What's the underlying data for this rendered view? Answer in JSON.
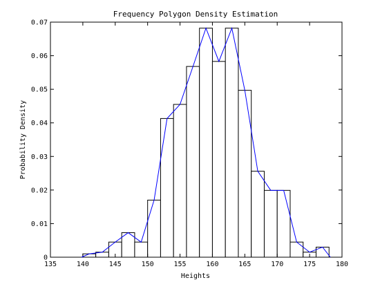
{
  "chart_data": {
    "type": "bar",
    "title": "Frequency Polygon Density Estimation",
    "xlabel": "Heights",
    "ylabel": "Probability Density",
    "xlim": [
      135,
      180
    ],
    "ylim": [
      0,
      0.07
    ],
    "xticks": [
      "135",
      "140",
      "145",
      "150",
      "155",
      "160",
      "165",
      "170",
      "175",
      "180"
    ],
    "yticks": [
      "0",
      "0.01",
      "0.02",
      "0.03",
      "0.04",
      "0.05",
      "0.06",
      "0.07"
    ],
    "grid": false,
    "legend": "none",
    "bar_color": "#ffffff",
    "bar_edge_color": "#000000",
    "line_color": "#0000ff",
    "bins": [
      {
        "x0": 140.0,
        "x1": 142.0,
        "value": 0.001
      },
      {
        "x0": 142.0,
        "x1": 144.0,
        "value": 0.0015
      },
      {
        "x0": 144.0,
        "x1": 146.0,
        "value": 0.0045
      },
      {
        "x0": 146.0,
        "x1": 148.0,
        "value": 0.0073
      },
      {
        "x0": 148.0,
        "x1": 150.0,
        "value": 0.0045
      },
      {
        "x0": 150.0,
        "x1": 152.0,
        "value": 0.017
      },
      {
        "x0": 152.0,
        "x1": 154.0,
        "value": 0.0413
      },
      {
        "x0": 154.0,
        "x1": 156.0,
        "value": 0.0455
      },
      {
        "x0": 156.0,
        "x1": 158.0,
        "value": 0.0568
      },
      {
        "x0": 158.0,
        "x1": 160.0,
        "value": 0.0682
      },
      {
        "x0": 160.0,
        "x1": 162.0,
        "value": 0.0583
      },
      {
        "x0": 162.0,
        "x1": 164.0,
        "value": 0.0682
      },
      {
        "x0": 164.0,
        "x1": 166.0,
        "value": 0.0497
      },
      {
        "x0": 166.0,
        "x1": 168.0,
        "value": 0.0256
      },
      {
        "x0": 168.0,
        "x1": 170.0,
        "value": 0.0199
      },
      {
        "x0": 170.0,
        "x1": 172.0,
        "value": 0.0199
      },
      {
        "x0": 172.0,
        "x1": 174.0,
        "value": 0.0045
      },
      {
        "x0": 174.0,
        "x1": 176.0,
        "value": 0.0015
      },
      {
        "x0": 176.0,
        "x1": 178.0,
        "value": 0.003
      }
    ],
    "polygon": {
      "x": [
        139.8,
        141.0,
        143.0,
        145.0,
        147.0,
        149.0,
        151.0,
        153.0,
        155.0,
        157.0,
        159.0,
        161.0,
        163.0,
        165.0,
        167.0,
        169.0,
        171.0,
        173.0,
        175.0,
        177.0,
        178.2
      ],
      "y": [
        0.0,
        0.001,
        0.0015,
        0.0045,
        0.0073,
        0.0045,
        0.017,
        0.0413,
        0.0455,
        0.0568,
        0.0682,
        0.0583,
        0.0682,
        0.0497,
        0.0256,
        0.0199,
        0.0199,
        0.0045,
        0.0015,
        0.003,
        0.0
      ]
    }
  }
}
